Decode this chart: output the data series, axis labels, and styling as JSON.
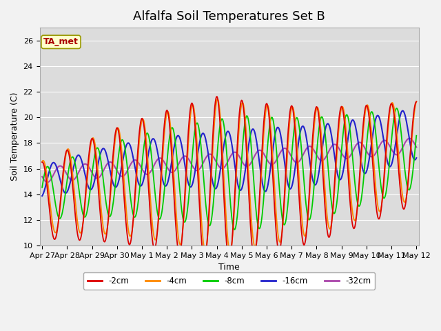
{
  "title": "Alfalfa Soil Temperatures Set B",
  "xlabel": "Time",
  "ylabel": "Soil Temperature (C)",
  "ylim": [
    10,
    27
  ],
  "background_color": "#e8e8e8",
  "plot_bg_color": "#dcdcdc",
  "legend_label": "TA_met",
  "legend_box_facecolor": "#ffffcc",
  "legend_box_edgecolor": "#999900",
  "series_colors": [
    "#dd0000",
    "#ff8800",
    "#00cc00",
    "#2222cc",
    "#aa44aa"
  ],
  "series_labels": [
    "-2cm",
    "-4cm",
    "-8cm",
    "-16cm",
    "-32cm"
  ],
  "tick_labels": [
    "Apr 27",
    "Apr 28",
    "Apr 29",
    "Apr 30",
    "May 1",
    "May 2",
    "May 3",
    "May 4",
    "May 5",
    "May 6",
    "May 7",
    "May 8",
    "May 9",
    "May 10",
    "May 11",
    "May 12"
  ],
  "grid_color": "#ffffff",
  "title_fontsize": 13,
  "axis_fontsize": 9,
  "tick_fontsize": 8
}
